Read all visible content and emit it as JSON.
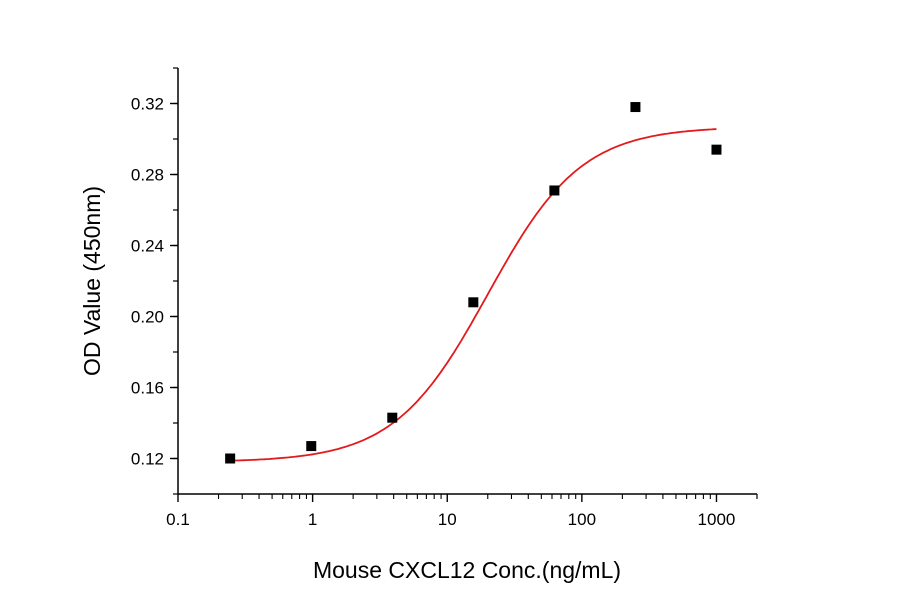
{
  "chart_data": {
    "type": "scatter",
    "title": "",
    "xlabel": "Mouse CXCL12 Conc.(ng/mL)",
    "ylabel": "OD Value (450nm)",
    "x_scale": "log",
    "xlim": [
      0.1,
      2000
    ],
    "ylim": [
      0.1,
      0.34
    ],
    "x_ticks": [
      0.1,
      1,
      10,
      100,
      1000
    ],
    "x_tick_labels": [
      "0.1",
      "1",
      "10",
      "100",
      "1000"
    ],
    "y_ticks": [
      0.12,
      0.16,
      0.2,
      0.24,
      0.28,
      0.32
    ],
    "y_tick_labels": [
      "0.12",
      "0.16",
      "0.20",
      "0.24",
      "0.28",
      "0.32"
    ],
    "grid": false,
    "legend": "none",
    "series": [
      {
        "type": "scatter",
        "marker": "square",
        "color": "#000000",
        "x": [
          0.244,
          0.977,
          3.906,
          15.625,
          62.5,
          250,
          1000
        ],
        "y": [
          0.12,
          0.127,
          0.143,
          0.208,
          0.271,
          0.318,
          0.294
        ]
      },
      {
        "type": "line",
        "fit": "4-parameter logistic",
        "color": "#e31a1c",
        "x_range": [
          0.244,
          1000
        ],
        "bottom": 0.118,
        "top": 0.307,
        "ec50": 20,
        "hill": 1.25
      }
    ]
  }
}
